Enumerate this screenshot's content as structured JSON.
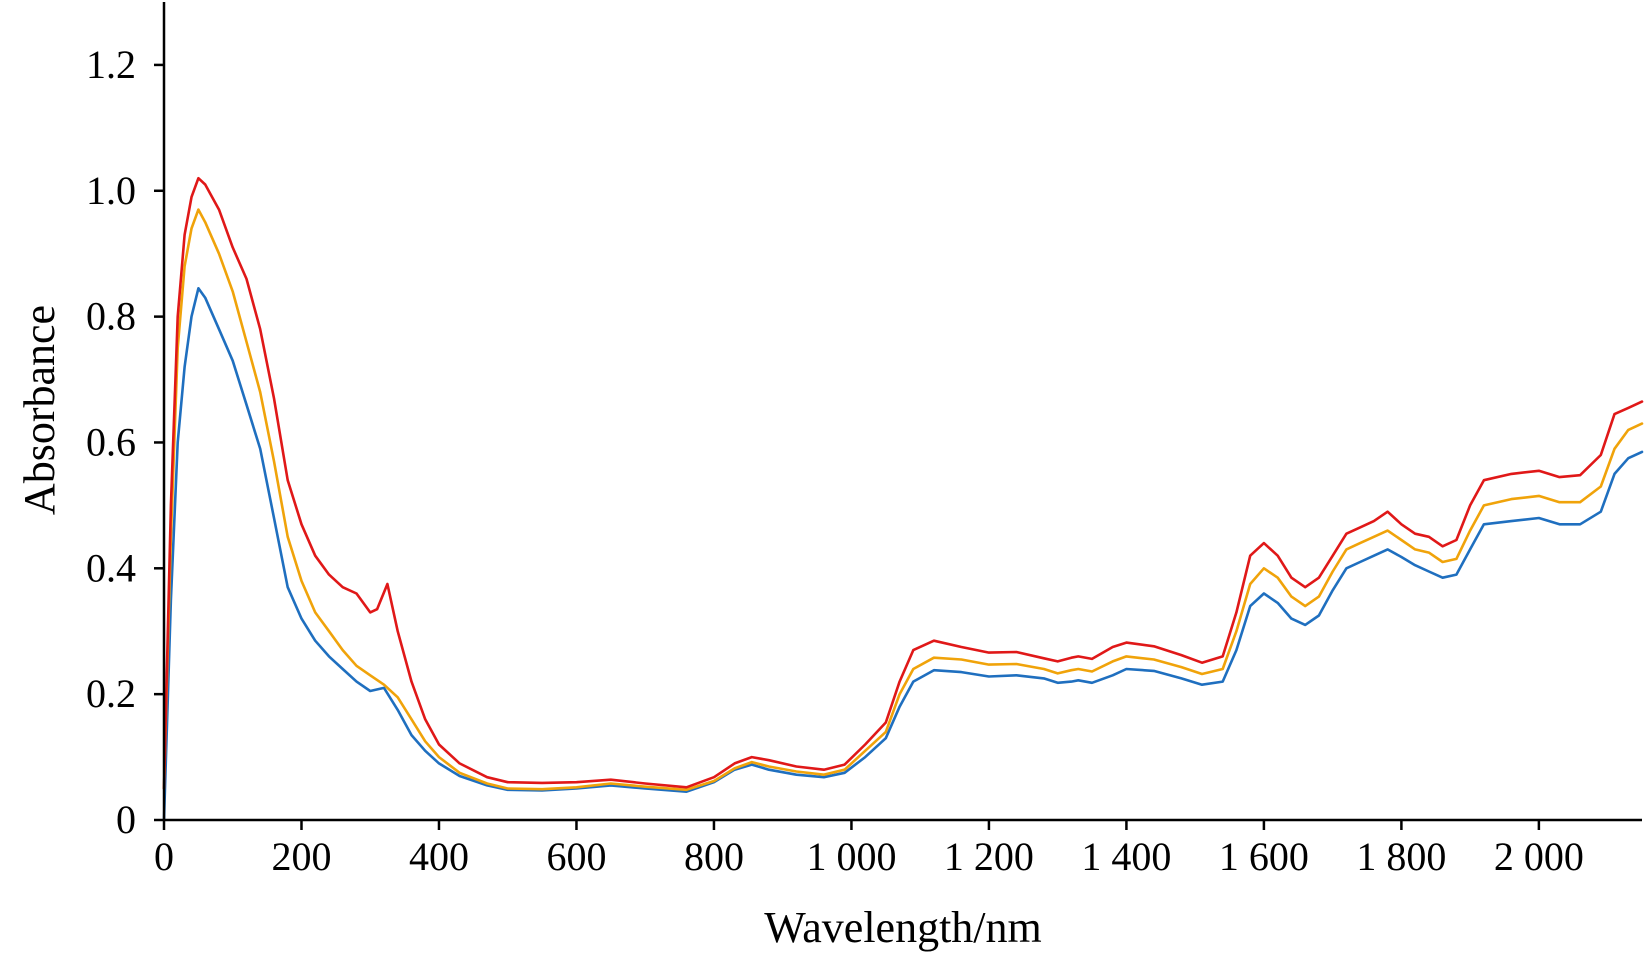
{
  "chart_data": {
    "type": "line",
    "title": "",
    "xlabel": "Wavelength/nm",
    "ylabel": "Absorbance",
    "xlim": [
      0,
      2150
    ],
    "ylim": [
      0,
      1.3
    ],
    "x_ticks": [
      {
        "value": 0,
        "label": "0"
      },
      {
        "value": 200,
        "label": "200"
      },
      {
        "value": 400,
        "label": "400"
      },
      {
        "value": 600,
        "label": "600"
      },
      {
        "value": 800,
        "label": "800"
      },
      {
        "value": 1000,
        "label": "1 000"
      },
      {
        "value": 1200,
        "label": "1 200"
      },
      {
        "value": 1400,
        "label": "1 400"
      },
      {
        "value": 1600,
        "label": "1 600"
      },
      {
        "value": 1800,
        "label": "1 800"
      },
      {
        "value": 2000,
        "label": "2 000"
      }
    ],
    "y_ticks": [
      {
        "value": 0,
        "label": "0"
      },
      {
        "value": 0.2,
        "label": "0.2"
      },
      {
        "value": 0.4,
        "label": "0.4"
      },
      {
        "value": 0.6,
        "label": "0.6"
      },
      {
        "value": 0.8,
        "label": "0.8"
      },
      {
        "value": 1.0,
        "label": "1.0"
      },
      {
        "value": 1.2,
        "label": "1.2"
      }
    ],
    "grid": false,
    "legend": "none",
    "series": [
      {
        "color": "#1f6fbf",
        "points": [
          [
            0,
            0.0
          ],
          [
            10,
            0.35
          ],
          [
            20,
            0.6
          ],
          [
            30,
            0.72
          ],
          [
            40,
            0.8
          ],
          [
            50,
            0.845
          ],
          [
            60,
            0.83
          ],
          [
            80,
            0.78
          ],
          [
            100,
            0.73
          ],
          [
            120,
            0.66
          ],
          [
            140,
            0.59
          ],
          [
            160,
            0.48
          ],
          [
            180,
            0.37
          ],
          [
            200,
            0.32
          ],
          [
            220,
            0.285
          ],
          [
            240,
            0.26
          ],
          [
            260,
            0.24
          ],
          [
            280,
            0.22
          ],
          [
            300,
            0.205
          ],
          [
            320,
            0.21
          ],
          [
            340,
            0.175
          ],
          [
            360,
            0.135
          ],
          [
            380,
            0.11
          ],
          [
            400,
            0.09
          ],
          [
            430,
            0.07
          ],
          [
            470,
            0.055
          ],
          [
            500,
            0.048
          ],
          [
            550,
            0.047
          ],
          [
            600,
            0.05
          ],
          [
            650,
            0.055
          ],
          [
            700,
            0.05
          ],
          [
            760,
            0.045
          ],
          [
            800,
            0.06
          ],
          [
            830,
            0.08
          ],
          [
            855,
            0.088
          ],
          [
            880,
            0.08
          ],
          [
            920,
            0.072
          ],
          [
            960,
            0.068
          ],
          [
            990,
            0.075
          ],
          [
            1020,
            0.1
          ],
          [
            1050,
            0.13
          ],
          [
            1070,
            0.18
          ],
          [
            1090,
            0.22
          ],
          [
            1120,
            0.238
          ],
          [
            1160,
            0.235
          ],
          [
            1200,
            0.228
          ],
          [
            1240,
            0.23
          ],
          [
            1280,
            0.225
          ],
          [
            1300,
            0.218
          ],
          [
            1320,
            0.22
          ],
          [
            1330,
            0.222
          ],
          [
            1350,
            0.218
          ],
          [
            1380,
            0.23
          ],
          [
            1400,
            0.24
          ],
          [
            1440,
            0.237
          ],
          [
            1480,
            0.225
          ],
          [
            1510,
            0.215
          ],
          [
            1540,
            0.22
          ],
          [
            1560,
            0.27
          ],
          [
            1580,
            0.34
          ],
          [
            1600,
            0.36
          ],
          [
            1620,
            0.345
          ],
          [
            1640,
            0.32
          ],
          [
            1660,
            0.31
          ],
          [
            1680,
            0.325
          ],
          [
            1700,
            0.365
          ],
          [
            1720,
            0.4
          ],
          [
            1740,
            0.41
          ],
          [
            1760,
            0.42
          ],
          [
            1780,
            0.43
          ],
          [
            1800,
            0.418
          ],
          [
            1820,
            0.405
          ],
          [
            1840,
            0.395
          ],
          [
            1860,
            0.385
          ],
          [
            1880,
            0.39
          ],
          [
            1900,
            0.43
          ],
          [
            1920,
            0.47
          ],
          [
            1960,
            0.475
          ],
          [
            2000,
            0.48
          ],
          [
            2030,
            0.47
          ],
          [
            2060,
            0.47
          ],
          [
            2090,
            0.49
          ],
          [
            2110,
            0.55
          ],
          [
            2130,
            0.575
          ],
          [
            2150,
            0.585
          ]
        ]
      },
      {
        "color": "#f0a30a",
        "points": [
          [
            0,
            0.05
          ],
          [
            10,
            0.45
          ],
          [
            20,
            0.75
          ],
          [
            30,
            0.88
          ],
          [
            40,
            0.94
          ],
          [
            50,
            0.97
          ],
          [
            60,
            0.95
          ],
          [
            80,
            0.9
          ],
          [
            100,
            0.84
          ],
          [
            120,
            0.76
          ],
          [
            140,
            0.68
          ],
          [
            160,
            0.57
          ],
          [
            180,
            0.45
          ],
          [
            200,
            0.38
          ],
          [
            220,
            0.33
          ],
          [
            240,
            0.3
          ],
          [
            260,
            0.27
          ],
          [
            280,
            0.245
          ],
          [
            300,
            0.23
          ],
          [
            320,
            0.215
          ],
          [
            340,
            0.195
          ],
          [
            360,
            0.16
          ],
          [
            380,
            0.125
          ],
          [
            400,
            0.1
          ],
          [
            430,
            0.075
          ],
          [
            470,
            0.058
          ],
          [
            500,
            0.05
          ],
          [
            550,
            0.049
          ],
          [
            600,
            0.052
          ],
          [
            650,
            0.058
          ],
          [
            700,
            0.053
          ],
          [
            760,
            0.048
          ],
          [
            800,
            0.062
          ],
          [
            830,
            0.082
          ],
          [
            855,
            0.092
          ],
          [
            880,
            0.085
          ],
          [
            920,
            0.077
          ],
          [
            960,
            0.072
          ],
          [
            990,
            0.08
          ],
          [
            1020,
            0.11
          ],
          [
            1050,
            0.14
          ],
          [
            1070,
            0.2
          ],
          [
            1090,
            0.24
          ],
          [
            1120,
            0.258
          ],
          [
            1160,
            0.255
          ],
          [
            1200,
            0.247
          ],
          [
            1240,
            0.248
          ],
          [
            1280,
            0.24
          ],
          [
            1300,
            0.233
          ],
          [
            1320,
            0.238
          ],
          [
            1330,
            0.24
          ],
          [
            1350,
            0.236
          ],
          [
            1380,
            0.252
          ],
          [
            1400,
            0.26
          ],
          [
            1440,
            0.255
          ],
          [
            1480,
            0.243
          ],
          [
            1510,
            0.232
          ],
          [
            1540,
            0.24
          ],
          [
            1560,
            0.3
          ],
          [
            1580,
            0.375
          ],
          [
            1600,
            0.4
          ],
          [
            1620,
            0.385
          ],
          [
            1640,
            0.355
          ],
          [
            1660,
            0.34
          ],
          [
            1680,
            0.355
          ],
          [
            1700,
            0.395
          ],
          [
            1720,
            0.43
          ],
          [
            1740,
            0.44
          ],
          [
            1760,
            0.45
          ],
          [
            1780,
            0.46
          ],
          [
            1800,
            0.445
          ],
          [
            1820,
            0.43
          ],
          [
            1840,
            0.425
          ],
          [
            1860,
            0.41
          ],
          [
            1880,
            0.415
          ],
          [
            1900,
            0.46
          ],
          [
            1920,
            0.5
          ],
          [
            1960,
            0.51
          ],
          [
            2000,
            0.515
          ],
          [
            2030,
            0.505
          ],
          [
            2060,
            0.505
          ],
          [
            2090,
            0.53
          ],
          [
            2110,
            0.59
          ],
          [
            2130,
            0.62
          ],
          [
            2150,
            0.63
          ]
        ]
      },
      {
        "color": "#e01818",
        "points": [
          [
            0,
            0.05
          ],
          [
            10,
            0.5
          ],
          [
            20,
            0.8
          ],
          [
            30,
            0.93
          ],
          [
            40,
            0.99
          ],
          [
            50,
            1.02
          ],
          [
            60,
            1.01
          ],
          [
            80,
            0.97
          ],
          [
            100,
            0.91
          ],
          [
            120,
            0.86
          ],
          [
            140,
            0.78
          ],
          [
            160,
            0.67
          ],
          [
            180,
            0.54
          ],
          [
            200,
            0.47
          ],
          [
            220,
            0.42
          ],
          [
            240,
            0.39
          ],
          [
            260,
            0.37
          ],
          [
            280,
            0.36
          ],
          [
            300,
            0.33
          ],
          [
            310,
            0.335
          ],
          [
            325,
            0.375
          ],
          [
            340,
            0.3
          ],
          [
            360,
            0.22
          ],
          [
            380,
            0.16
          ],
          [
            400,
            0.12
          ],
          [
            430,
            0.09
          ],
          [
            470,
            0.068
          ],
          [
            500,
            0.06
          ],
          [
            550,
            0.059
          ],
          [
            600,
            0.06
          ],
          [
            650,
            0.064
          ],
          [
            700,
            0.058
          ],
          [
            760,
            0.052
          ],
          [
            800,
            0.068
          ],
          [
            830,
            0.09
          ],
          [
            855,
            0.1
          ],
          [
            880,
            0.095
          ],
          [
            920,
            0.085
          ],
          [
            960,
            0.08
          ],
          [
            990,
            0.088
          ],
          [
            1020,
            0.12
          ],
          [
            1050,
            0.155
          ],
          [
            1070,
            0.22
          ],
          [
            1090,
            0.27
          ],
          [
            1120,
            0.285
          ],
          [
            1160,
            0.275
          ],
          [
            1200,
            0.266
          ],
          [
            1240,
            0.267
          ],
          [
            1280,
            0.257
          ],
          [
            1300,
            0.252
          ],
          [
            1320,
            0.258
          ],
          [
            1330,
            0.26
          ],
          [
            1350,
            0.256
          ],
          [
            1380,
            0.275
          ],
          [
            1400,
            0.282
          ],
          [
            1440,
            0.276
          ],
          [
            1480,
            0.262
          ],
          [
            1510,
            0.25
          ],
          [
            1540,
            0.26
          ],
          [
            1560,
            0.33
          ],
          [
            1580,
            0.42
          ],
          [
            1600,
            0.44
          ],
          [
            1620,
            0.42
          ],
          [
            1640,
            0.385
          ],
          [
            1660,
            0.37
          ],
          [
            1680,
            0.385
          ],
          [
            1700,
            0.42
          ],
          [
            1720,
            0.455
          ],
          [
            1740,
            0.465
          ],
          [
            1760,
            0.475
          ],
          [
            1780,
            0.49
          ],
          [
            1800,
            0.47
          ],
          [
            1820,
            0.455
          ],
          [
            1840,
            0.45
          ],
          [
            1860,
            0.435
          ],
          [
            1880,
            0.445
          ],
          [
            1900,
            0.5
          ],
          [
            1920,
            0.54
          ],
          [
            1960,
            0.55
          ],
          [
            2000,
            0.555
          ],
          [
            2030,
            0.545
          ],
          [
            2060,
            0.548
          ],
          [
            2090,
            0.58
          ],
          [
            2110,
            0.645
          ],
          [
            2130,
            0.655
          ],
          [
            2150,
            0.665
          ]
        ]
      }
    ]
  }
}
